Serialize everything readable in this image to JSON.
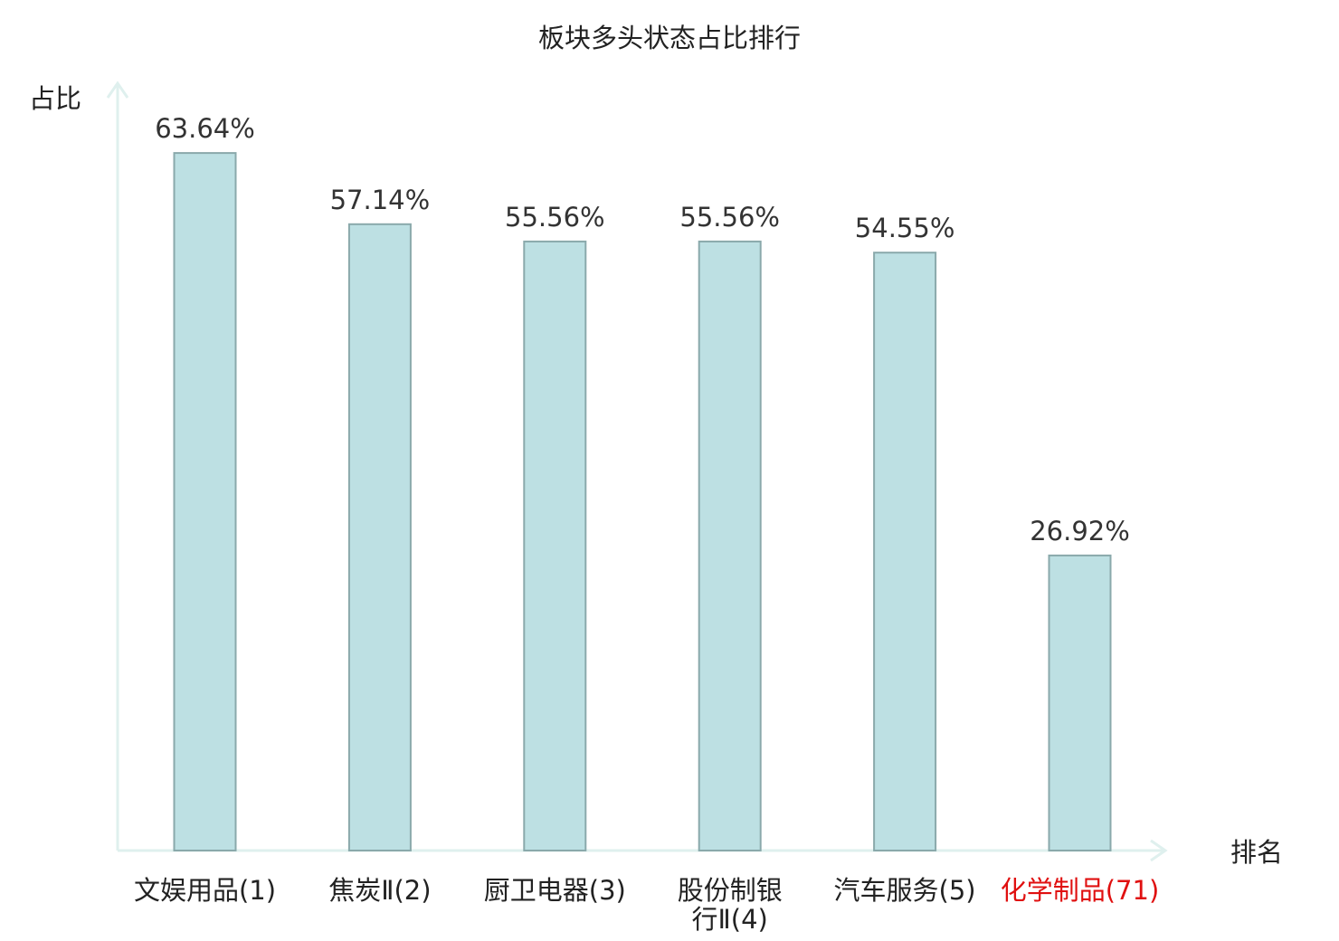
{
  "chart_data": {
    "type": "bar",
    "title": "板块多头状态占比排行",
    "ylabel": "占比",
    "xlabel": "排名",
    "categories": [
      [
        "文娱用品(1)"
      ],
      [
        "焦炭Ⅱ(2)"
      ],
      [
        "厨卫电器(3)"
      ],
      [
        "股份制银",
        "行Ⅱ(4)"
      ],
      [
        "汽车服务(5)"
      ],
      [
        "化学制品(71)"
      ]
    ],
    "values": [
      63.64,
      57.14,
      55.56,
      55.56,
      54.55,
      26.92
    ],
    "value_labels": [
      "63.64%",
      "57.14%",
      "55.56%",
      "55.56%",
      "54.55%",
      "26.92%"
    ],
    "highlight_index": 5,
    "ylim": [
      0,
      70
    ],
    "grid": false,
    "colors": {
      "bar_fill": "#bde0e3",
      "bar_stroke": "#8aa9ab",
      "axis": "#dff0ee",
      "label": "#222222",
      "value_label": "#333333",
      "highlight": "#e01010"
    }
  }
}
